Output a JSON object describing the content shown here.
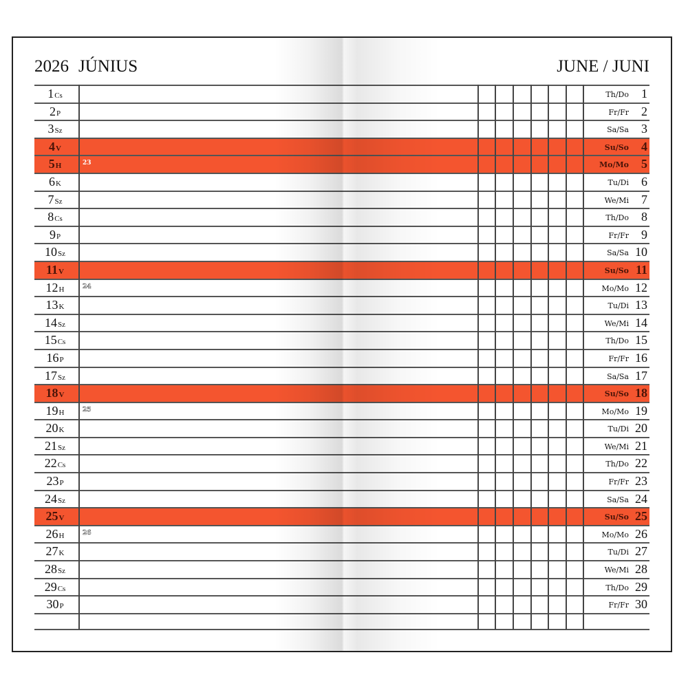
{
  "header": {
    "year": "2026",
    "month_hu": "JÚNIUS",
    "month_en_de": "JUNE / JUNI"
  },
  "colors": {
    "weekend": "#f4552f",
    "lines": "#555555"
  },
  "days": [
    {
      "num": "1",
      "hu": "Cs",
      "en": "Th/Do",
      "weekend": false,
      "week": ""
    },
    {
      "num": "2",
      "hu": "P",
      "en": "Fr/Fr",
      "weekend": false,
      "week": ""
    },
    {
      "num": "3",
      "hu": "Sz",
      "en": "Sa/Sa",
      "weekend": false,
      "week": ""
    },
    {
      "num": "4",
      "hu": "V",
      "en": "Su/So",
      "weekend": true,
      "week": ""
    },
    {
      "num": "5",
      "hu": "H",
      "en": "Mo/Mo",
      "weekend": true,
      "week": "23"
    },
    {
      "num": "6",
      "hu": "K",
      "en": "Tu/Di",
      "weekend": false,
      "week": ""
    },
    {
      "num": "7",
      "hu": "Sz",
      "en": "We/Mi",
      "weekend": false,
      "week": ""
    },
    {
      "num": "8",
      "hu": "Cs",
      "en": "Th/Do",
      "weekend": false,
      "week": ""
    },
    {
      "num": "9",
      "hu": "P",
      "en": "Fr/Fr",
      "weekend": false,
      "week": ""
    },
    {
      "num": "10",
      "hu": "Sz",
      "en": "Sa/Sa",
      "weekend": false,
      "week": ""
    },
    {
      "num": "11",
      "hu": "V",
      "en": "Su/So",
      "weekend": true,
      "week": ""
    },
    {
      "num": "12",
      "hu": "H",
      "en": "Mo/Mo",
      "weekend": false,
      "week": "24"
    },
    {
      "num": "13",
      "hu": "K",
      "en": "Tu/Di",
      "weekend": false,
      "week": ""
    },
    {
      "num": "14",
      "hu": "Sz",
      "en": "We/Mi",
      "weekend": false,
      "week": ""
    },
    {
      "num": "15",
      "hu": "Cs",
      "en": "Th/Do",
      "weekend": false,
      "week": ""
    },
    {
      "num": "16",
      "hu": "P",
      "en": "Fr/Fr",
      "weekend": false,
      "week": ""
    },
    {
      "num": "17",
      "hu": "Sz",
      "en": "Sa/Sa",
      "weekend": false,
      "week": ""
    },
    {
      "num": "18",
      "hu": "V",
      "en": "Su/So",
      "weekend": true,
      "week": ""
    },
    {
      "num": "19",
      "hu": "H",
      "en": "Mo/Mo",
      "weekend": false,
      "week": "25"
    },
    {
      "num": "20",
      "hu": "K",
      "en": "Tu/Di",
      "weekend": false,
      "week": ""
    },
    {
      "num": "21",
      "hu": "Sz",
      "en": "We/Mi",
      "weekend": false,
      "week": ""
    },
    {
      "num": "22",
      "hu": "Cs",
      "en": "Th/Do",
      "weekend": false,
      "week": ""
    },
    {
      "num": "23",
      "hu": "P",
      "en": "Fr/Fr",
      "weekend": false,
      "week": ""
    },
    {
      "num": "24",
      "hu": "Sz",
      "en": "Sa/Sa",
      "weekend": false,
      "week": ""
    },
    {
      "num": "25",
      "hu": "V",
      "en": "Su/So",
      "weekend": true,
      "week": ""
    },
    {
      "num": "26",
      "hu": "H",
      "en": "Mo/Mo",
      "weekend": false,
      "week": "26"
    },
    {
      "num": "27",
      "hu": "K",
      "en": "Tu/Di",
      "weekend": false,
      "week": ""
    },
    {
      "num": "28",
      "hu": "Sz",
      "en": "We/Mi",
      "weekend": false,
      "week": ""
    },
    {
      "num": "29",
      "hu": "Cs",
      "en": "Th/Do",
      "weekend": false,
      "week": ""
    },
    {
      "num": "30",
      "hu": "P",
      "en": "Fr/Fr",
      "weekend": false,
      "week": ""
    }
  ]
}
